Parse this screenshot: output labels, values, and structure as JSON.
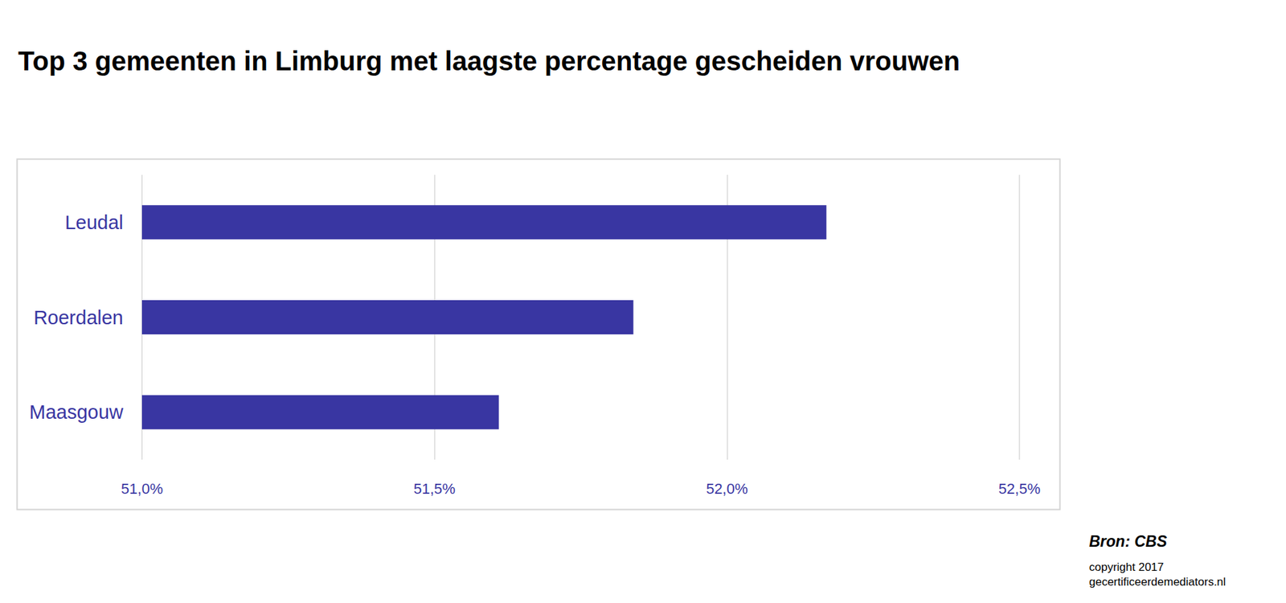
{
  "chart_data": {
    "type": "bar",
    "orientation": "horizontal",
    "title": "Top 3 gemeenten in Limburg met laagste percentage gescheiden vrouwen",
    "categories": [
      "Leudal",
      "Roerdalen",
      "Maasgouw"
    ],
    "values": [
      52.17,
      51.84,
      51.61
    ],
    "color": "#3936a2",
    "xlim": [
      51.0,
      52.5
    ],
    "xticks": [
      {
        "value": 51.0,
        "label": "51,0%"
      },
      {
        "value": 51.5,
        "label": "51,5%"
      },
      {
        "value": 52.0,
        "label": "52,0%"
      },
      {
        "value": 52.5,
        "label": "52,5%"
      }
    ],
    "grid": true,
    "annotations": [
      "Bron: CBS",
      "copyright 2017",
      "gecertificeerdemediators.nl"
    ]
  }
}
